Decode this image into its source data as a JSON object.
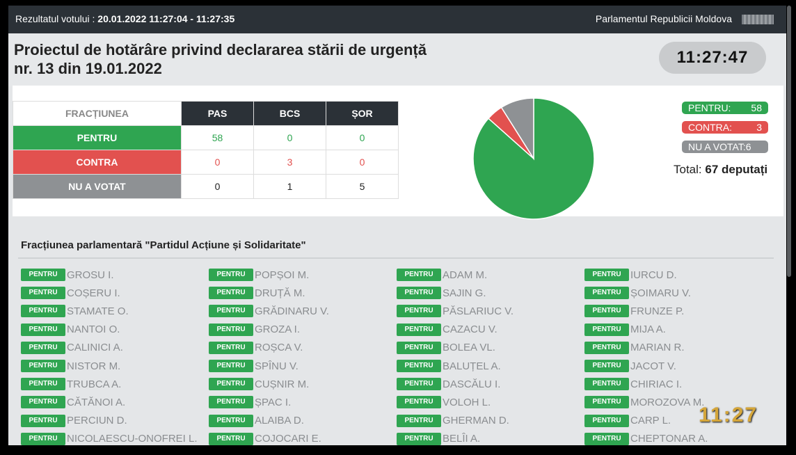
{
  "header": {
    "vote_label": "Rezultatul votului : ",
    "vote_time": "20.01.2022 11:27:04 - 11:27:35",
    "parliament": "Parlamentul Republicii Moldova"
  },
  "title": {
    "line1": "Proiectul de hotărâre privind declararea stării de urgență",
    "line2": "nr. 13 din 19.01.2022"
  },
  "clock": "11:27:47",
  "results_table": {
    "corner": "FRACȚIUNEA",
    "columns": [
      "PAS",
      "BCS",
      "ȘOR"
    ],
    "rows": [
      {
        "label": "PENTRU",
        "values": [
          "58",
          "0",
          "0"
        ]
      },
      {
        "label": "CONTRA",
        "values": [
          "0",
          "3",
          "0"
        ]
      },
      {
        "label": "NU A VOTAT",
        "values": [
          "0",
          "1",
          "5"
        ]
      }
    ]
  },
  "chart_data": {
    "type": "pie",
    "slices": [
      {
        "label": "PENTRU",
        "value": 58,
        "color": "#2fa551"
      },
      {
        "label": "CONTRA",
        "value": 3,
        "color": "#e2514f"
      },
      {
        "label": "NU A VOTAT",
        "value": 6,
        "color": "#8e9194"
      }
    ]
  },
  "legend": {
    "pentru_label": "PENTRU:",
    "pentru_value": "58",
    "contra_label": "CONTRA:",
    "contra_value": "3",
    "nv_label": "NU A VOTAT:6",
    "total_label": "Total: ",
    "total_value": "67 deputați"
  },
  "fraction_title": "Fracțiunea parlamentară \"Partidul Acțiune și Solidaritate\"",
  "badge_label": "PENTRU",
  "columns": [
    [
      "GROSU I.",
      "COȘERU I.",
      "STAMATE O.",
      "NANTOI O.",
      "CALINICI A.",
      "NISTOR M.",
      "TRUBCA A.",
      "CĂTĂNOI A.",
      "PERCIUN D.",
      "NICOLAESCU-ONOFREI L."
    ],
    [
      "POPȘOI M.",
      "DRUȚĂ M.",
      "GRĂDINARU V.",
      "GROZA I.",
      "ROȘCA V.",
      "SPÎNU V.",
      "CUȘNIR M.",
      "ȘPAC I.",
      "ALAIBA D.",
      "COJOCARI E."
    ],
    [
      "ADAM M.",
      "SAJIN G.",
      "PĂSLARIUC V.",
      "CAZACU V.",
      "BOLEA VL.",
      "BALUȚEL A.",
      "DASCĂLU I.",
      "VOLOH L.",
      "GHERMAN D.",
      "BELÎI A."
    ],
    [
      "IURCU D.",
      "ȘOIMARU V.",
      "FRUNZE P.",
      "MIJA A.",
      "MARIAN R.",
      "JACOT V.",
      "CHIRIAC I.",
      "MOROZOVA M.",
      "CARP L.",
      "CHEPTONAR A."
    ]
  ],
  "tv_clock": "11:27"
}
